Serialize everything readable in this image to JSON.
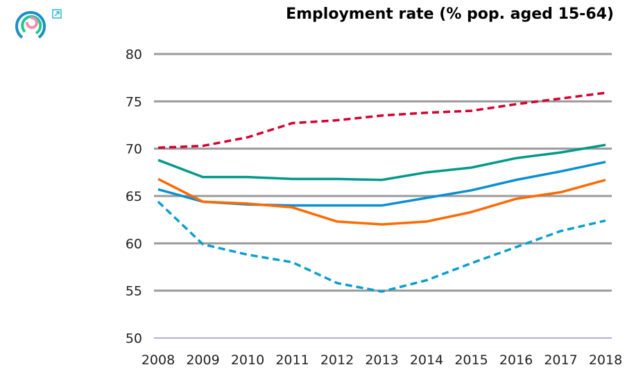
{
  "chart_data": {
    "type": "line",
    "title": "Employment rate (% pop. aged 15-64)",
    "xlabel": "",
    "ylabel": "",
    "x": [
      2008,
      2009,
      2010,
      2011,
      2012,
      2013,
      2014,
      2015,
      2016,
      2017,
      2018
    ],
    "x_tick_labels": [
      "2008",
      "2009",
      "2010",
      "2011",
      "2012",
      "2013",
      "2014",
      "2015",
      "2016",
      "2017",
      "2018"
    ],
    "ylim": [
      50,
      80
    ],
    "y_ticks": [
      50,
      55,
      60,
      65,
      70,
      75,
      80
    ],
    "y_tick_labels": [
      "50",
      "55",
      "60",
      "65",
      "70",
      "75",
      "80"
    ],
    "grid": true,
    "legend": "none",
    "series": [
      {
        "color": "#d4002f",
        "dashed": true,
        "values": [
          70.1,
          70.3,
          71.2,
          72.7,
          73.0,
          73.5,
          73.8,
          74.0,
          74.7,
          75.3,
          75.9
        ]
      },
      {
        "color": "#00998a",
        "dashed": false,
        "values": [
          68.8,
          67.0,
          67.0,
          66.8,
          66.8,
          66.7,
          67.5,
          68.0,
          69.0,
          69.6,
          70.4
        ]
      },
      {
        "color": "#0a8fd0",
        "dashed": false,
        "values": [
          65.7,
          64.4,
          64.1,
          64.0,
          64.0,
          64.0,
          64.8,
          65.6,
          66.7,
          67.6,
          68.6
        ]
      },
      {
        "color": "#ff6a00",
        "dashed": false,
        "values": [
          66.8,
          64.4,
          64.2,
          63.8,
          62.3,
          62.0,
          62.3,
          63.3,
          64.7,
          65.4,
          66.7
        ]
      },
      {
        "color": "#0a9ed0",
        "dashed": true,
        "values": [
          64.4,
          59.9,
          58.8,
          58.0,
          55.8,
          54.9,
          56.1,
          57.9,
          59.6,
          61.3,
          62.4
        ]
      }
    ]
  },
  "icons": {
    "logo": "circular-rings-logo",
    "external": "external-link-icon"
  }
}
